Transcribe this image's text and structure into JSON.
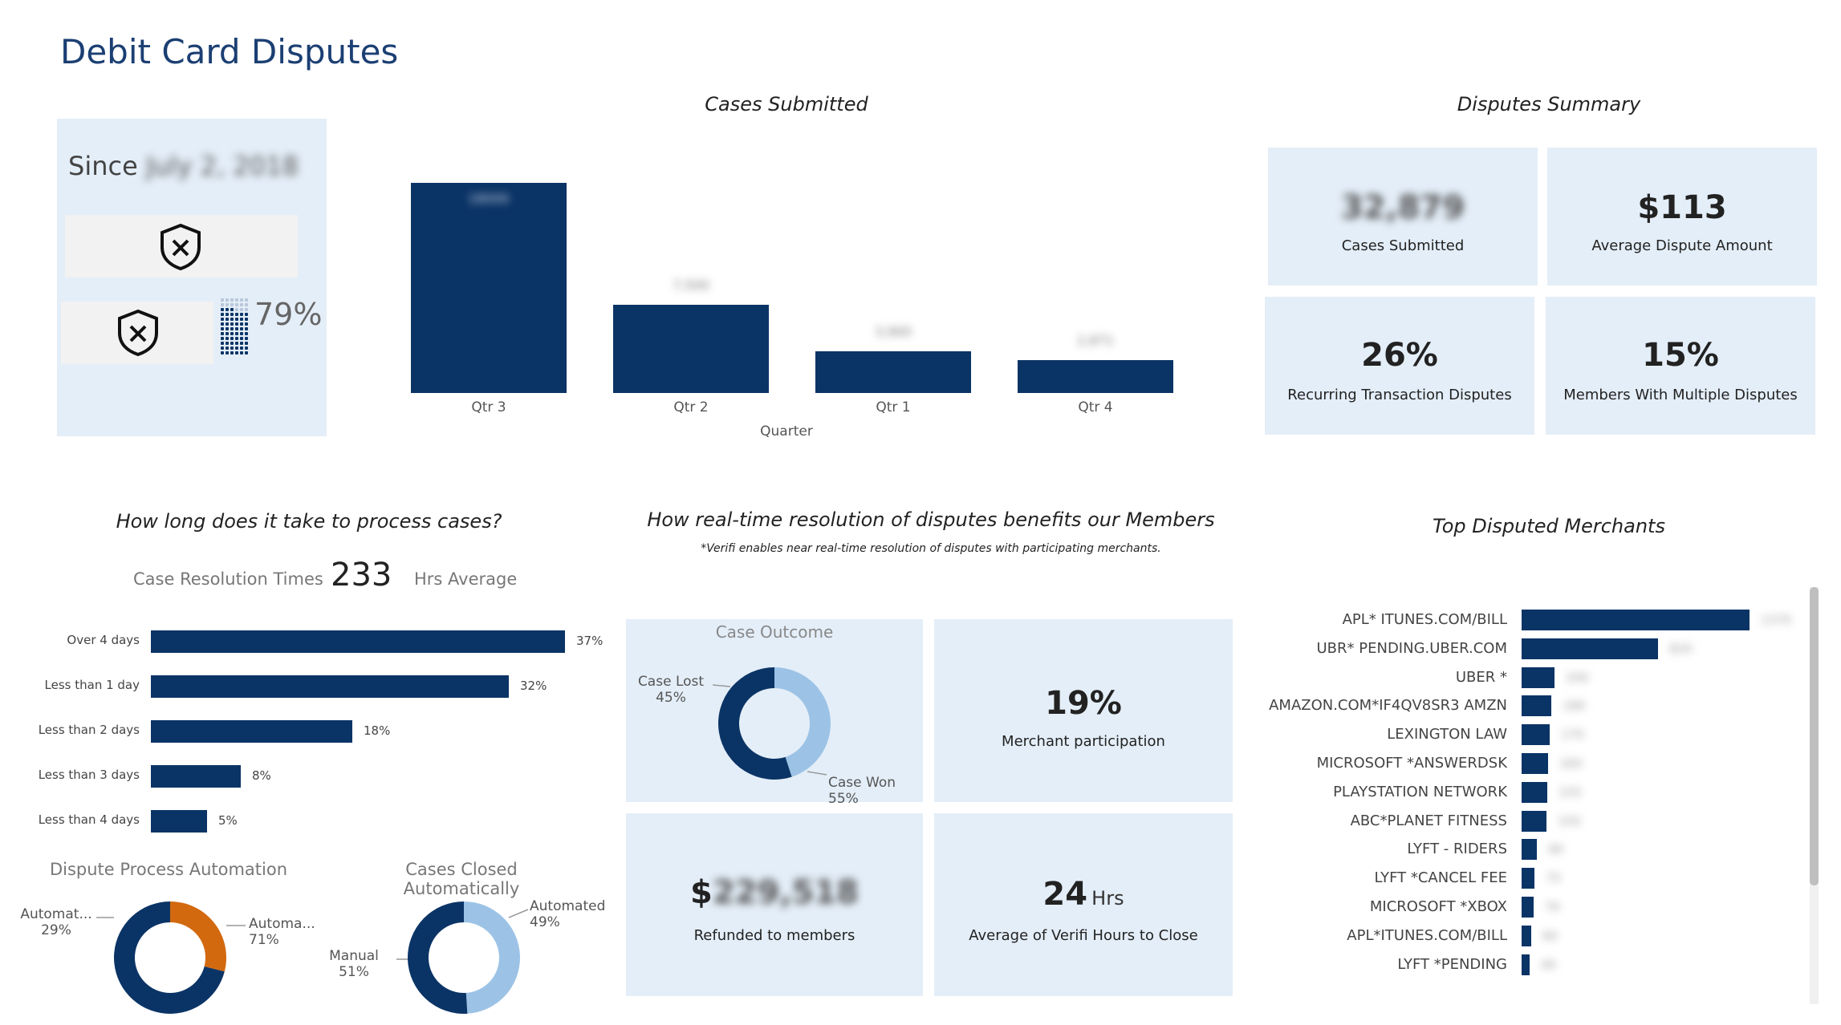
{
  "title": "Debit Card Disputes",
  "since": {
    "prefix": "Since",
    "date": "July 2, 2018",
    "percent": "79%"
  },
  "cases_submitted": {
    "title": "Cases Submitted",
    "xlabel": "Quarter",
    "bars": [
      {
        "label": "Qtr 3",
        "value_text": "18000",
        "rel": 1.0
      },
      {
        "label": "Qtr 2",
        "value_text": "7,500",
        "rel": 0.42
      },
      {
        "label": "Qtr 1",
        "value_text": "3,900",
        "rel": 0.2
      },
      {
        "label": "Qtr 4",
        "value_text": "2,871",
        "rel": 0.155
      }
    ]
  },
  "summary": {
    "title": "Disputes Summary",
    "tiles": [
      {
        "value": "32,879",
        "label": "Cases Submitted",
        "blurred": true
      },
      {
        "value": "$113",
        "label": "Average Dispute Amount",
        "blurred": false
      },
      {
        "value": "26%",
        "label": "Recurring Transaction Disputes",
        "blurred": false
      },
      {
        "value": "15%",
        "label": "Members With Multiple Disputes",
        "blurred": false
      }
    ]
  },
  "process": {
    "title": "How long does it take to process cases?",
    "resolution_label": "Case Resolution Times",
    "resolution_value": "233",
    "resolution_unit": "Hrs Average"
  },
  "chart_data": [
    {
      "type": "bar",
      "orientation": "horizontal",
      "categories": [
        "Over 4 days",
        "Less than 1 day",
        "Less than 2 days",
        "Less than 3 days",
        "Less than 4 days"
      ],
      "values": [
        37,
        32,
        18,
        8,
        5
      ],
      "value_labels": [
        "37%",
        "32%",
        "18%",
        "8%",
        "5%"
      ],
      "xlim": [
        0,
        37
      ]
    },
    {
      "type": "pie",
      "title": "Dispute Process Automation",
      "slices": [
        {
          "name": "Automat...",
          "value": 29,
          "label": "29%",
          "color": "#d2690f"
        },
        {
          "name": "Automa...",
          "value": 71,
          "label": "71%",
          "color": "#0b3466"
        }
      ]
    },
    {
      "type": "pie",
      "title": "Cases Closed Automatically",
      "slices": [
        {
          "name": "Automated",
          "value": 49,
          "label": "49%",
          "color": "#9cc3e6"
        },
        {
          "name": "Manual",
          "value": 51,
          "label": "51%",
          "color": "#0b3466"
        }
      ]
    },
    {
      "type": "pie",
      "title": "Case Outcome",
      "slices": [
        {
          "name": "Case Lost",
          "value": 45,
          "label": "45%",
          "color": "#9cc3e6"
        },
        {
          "name": "Case Won",
          "value": 55,
          "label": "55%",
          "color": "#0b3466"
        }
      ]
    },
    {
      "type": "bar",
      "orientation": "horizontal",
      "title": "Top Disputed Merchants",
      "categories": [
        "APL* ITUNES.COM/BILL",
        "UBR* PENDING.UBER.COM",
        "UBER *",
        "AMAZON.COM*IF4QV8SR3 AMZN",
        "LEXINGTON LAW",
        "MICROSOFT *ANSWERDSK",
        "PLAYSTATION NETWORK",
        "ABC*PLANET FITNESS",
        "LYFT - RIDERS",
        "LYFT *CANCEL FEE",
        "MICROSOFT *XBOX",
        "APL*ITUNES.COM/BILL",
        "LYFT *PENDING"
      ],
      "values": [
        1370,
        820,
        200,
        180,
        170,
        160,
        155,
        150,
        90,
        75,
        70,
        60,
        40
      ],
      "value_labels": [
        "1370",
        "820",
        "200",
        "180",
        "170",
        "160",
        "155",
        "150",
        "90",
        "75",
        "70",
        "60",
        "40"
      ]
    }
  ],
  "benefits": {
    "title": "How real-time resolution of disputes benefits our Members",
    "subtitle": "*Verifi enables near real-time resolution of disputes with participating merchants.",
    "merchant_value": "19%",
    "merchant_label": "Merchant participation",
    "refund_prefix": "$",
    "refund_value": "229,518",
    "refund_label": "Refunded to members",
    "hours_value": "24",
    "hours_unit": "Hrs",
    "hours_label": "Average of Verifi Hours to Close"
  },
  "colors": {
    "navy": "#0b3466",
    "light_blue": "#9cc3e6",
    "orange": "#d2690f",
    "tile": "#e4eef8"
  }
}
